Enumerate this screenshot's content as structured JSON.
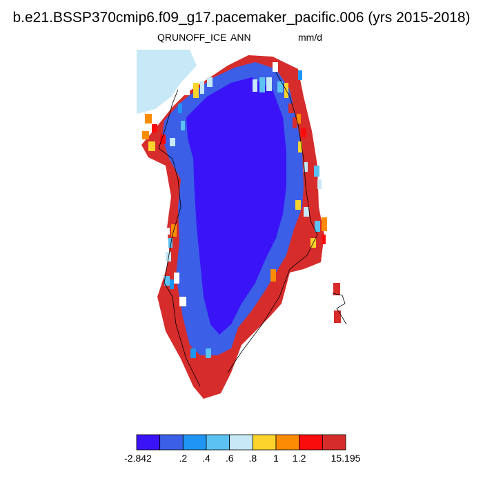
{
  "header": {
    "title": "b.e21.BSSP370cmip6.f09_g17.pacemaker_pacific.006 (yrs 2015-2018)",
    "variable": "QRUNOFF_ICE",
    "period": "ANN",
    "units": "mm/d"
  },
  "colorbar": {
    "colors": [
      "#3a14f7",
      "#3b5fe6",
      "#1f96f4",
      "#5cc2f2",
      "#c7e8f6",
      "#fcd42b",
      "#fd8c05",
      "#fb0c0c",
      "#d62c2c"
    ],
    "labels": [
      "-2.842",
      ".2",
      ".4",
      ".6",
      ".8",
      "1",
      "1.2",
      "15.195"
    ]
  },
  "map": {
    "region": "Greenland",
    "land_color": "#d62c2c",
    "coastline_color": "#000000"
  }
}
